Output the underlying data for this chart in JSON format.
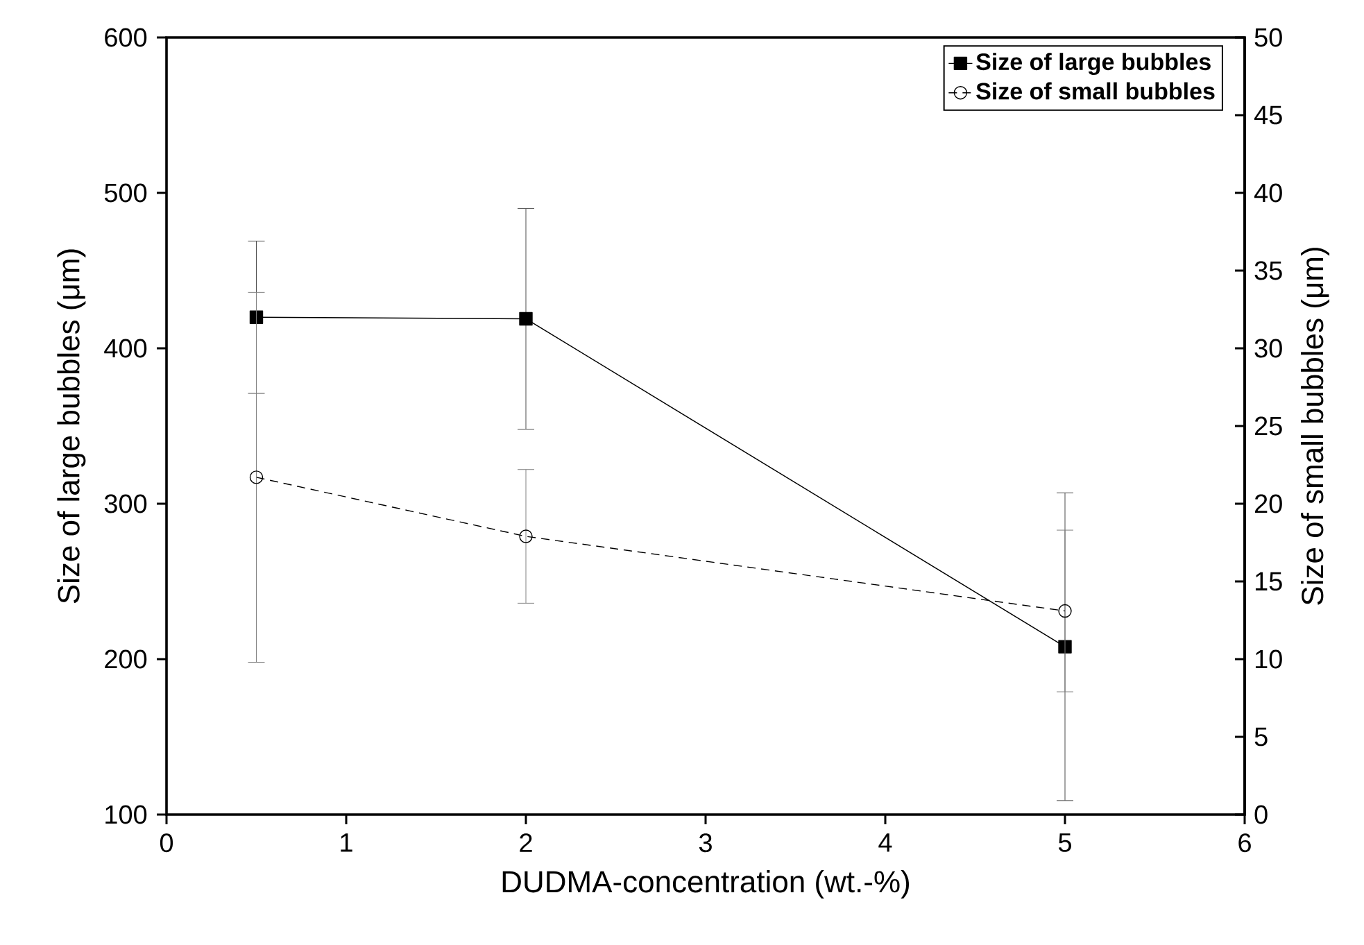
{
  "chart_data": {
    "type": "line",
    "xlabel": "DUDMA-concentration (wt.-%)",
    "ylabel": "Size of large bubbles (μm)",
    "y2label": "Size of small bubbles (μm)",
    "x": [
      0.5,
      2,
      5
    ],
    "series": [
      {
        "name": "Size of large bubbles",
        "color": "#000000",
        "values": [
          420,
          419,
          208
        ],
        "errors": [
          49,
          71,
          99
        ],
        "marker": "square",
        "line_style": "solid"
      },
      {
        "name": "Size of small bubbles",
        "color": "#000000",
        "values": [
          21.7,
          17.9,
          13.1
        ],
        "errors": [
          11.9,
          4.3,
          5.2
        ],
        "marker": "circle",
        "line_style": "dashed",
        "axis": "y2"
      }
    ],
    "xlim": [
      0,
      6
    ],
    "xticks": [
      0,
      1,
      2,
      3,
      4,
      5,
      6
    ],
    "ylim": [
      100,
      600
    ],
    "yticks": [
      100,
      200,
      300,
      400,
      500,
      600
    ],
    "y2lim": [
      0,
      50
    ],
    "y2ticks": [
      0,
      5,
      10,
      15,
      20,
      25,
      30,
      35,
      40,
      45,
      50
    ],
    "legend": "top right",
    "grid": false
  }
}
